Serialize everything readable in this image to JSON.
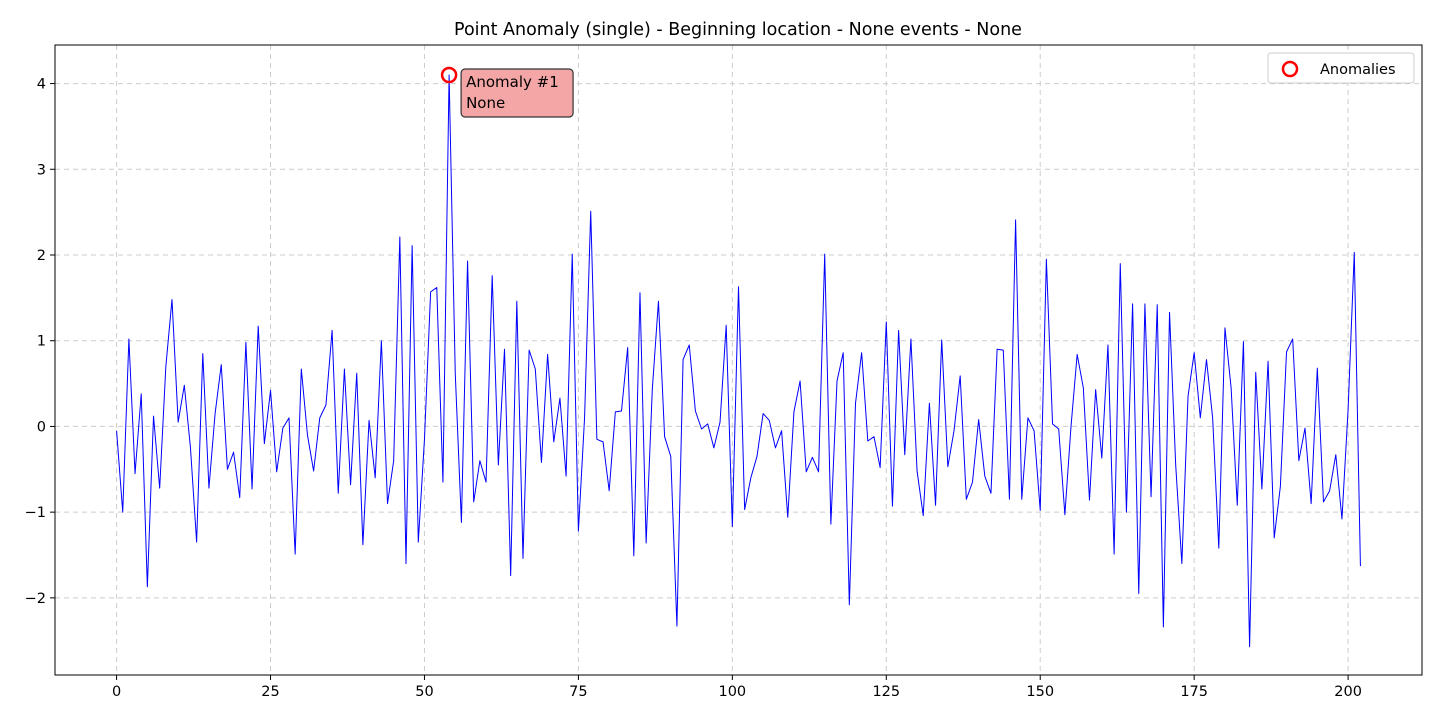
{
  "chart_data": {
    "type": "line",
    "title": "Point Anomaly (single) - Beginning location - None events - None",
    "xlabel": "",
    "ylabel": "",
    "xlim": [
      -10,
      212
    ],
    "ylim": [
      -2.9,
      4.45
    ],
    "xticks": [
      0,
      25,
      50,
      75,
      100,
      125,
      150,
      175,
      200
    ],
    "yticks": [
      -2,
      -1,
      0,
      1,
      2,
      3,
      4
    ],
    "grid": true,
    "legend_position": "top-right",
    "line_color": "#0000ff",
    "series": [
      {
        "values": [
          -0.05,
          -1.0,
          1.02,
          -0.55,
          0.38,
          -1.87,
          0.12,
          -0.72,
          0.7,
          1.48,
          0.05,
          0.48,
          -0.25,
          -1.35,
          0.85,
          -0.72,
          0.15,
          0.72,
          -0.5,
          -0.3,
          -0.83,
          0.98,
          -0.73,
          1.17,
          -0.2,
          0.42,
          -0.53,
          -0.02,
          0.1,
          -1.49,
          0.67,
          -0.1,
          -0.52,
          0.1,
          0.25,
          1.12,
          -0.78,
          0.67,
          -0.68,
          0.62,
          -1.38,
          0.07,
          -0.6,
          1.0,
          -0.9,
          -0.4,
          2.21,
          -1.6,
          2.11,
          -1.35,
          -0.15,
          1.57,
          1.62,
          -0.65,
          4.1,
          0.62,
          -1.12,
          1.93,
          -0.88,
          -0.4,
          -0.65,
          1.76,
          -0.45,
          0.9,
          -1.74,
          1.46,
          -1.54,
          0.89,
          0.67,
          -0.42,
          0.84,
          -0.18,
          0.33,
          -0.58,
          2.01,
          -1.22,
          0.1,
          2.51,
          -0.15,
          -0.18,
          -0.75,
          0.17,
          0.18,
          0.92,
          -1.51,
          1.56,
          -1.36,
          0.43,
          1.46,
          -0.12,
          -0.35,
          -2.33,
          0.78,
          0.95,
          0.18,
          -0.03,
          0.03,
          -0.25,
          0.05,
          1.18,
          -1.17,
          1.63,
          -0.97,
          -0.6,
          -0.35,
          0.15,
          0.07,
          -0.25,
          -0.05,
          -1.06,
          0.17,
          0.53,
          -0.53,
          -0.36,
          -0.53,
          2.01,
          -1.14,
          0.53,
          0.86,
          -2.08,
          0.27,
          0.86,
          -0.17,
          -0.12,
          -0.48,
          1.22,
          -0.93,
          1.12,
          -0.33,
          1.02,
          -0.52,
          -1.04,
          0.27,
          -0.92,
          1.01,
          -0.47,
          -0.05,
          0.59,
          -0.85,
          -0.65,
          0.08,
          -0.58,
          -0.78,
          0.9,
          0.89,
          -0.85,
          2.41,
          -0.85,
          0.1,
          -0.05,
          -0.98,
          1.95,
          0.03,
          -0.03,
          -1.03,
          0.0,
          0.84,
          0.45,
          -0.86,
          0.43,
          -0.37,
          0.95,
          -1.49,
          1.9,
          -1.0,
          1.43,
          -1.95,
          1.43,
          -0.82,
          1.42,
          -2.34,
          1.33,
          -0.45,
          -1.6,
          0.35,
          0.86,
          0.1,
          0.78,
          0.1,
          -1.42,
          1.15,
          0.45,
          -0.92,
          0.99,
          -2.57,
          0.63,
          -0.73,
          0.76,
          -1.3,
          -0.7,
          0.87,
          1.02,
          -0.4,
          -0.02,
          -0.9,
          0.68,
          -0.88,
          -0.75,
          -0.33,
          -1.08,
          0.2,
          2.03,
          -1.63
        ]
      }
    ],
    "anomalies": {
      "legend_label": "Anomalies",
      "marker_color": "#ff0000",
      "points": [
        {
          "x": 54,
          "y": 4.1
        }
      ]
    },
    "annotations": [
      {
        "x": 54,
        "y": 4.1,
        "line1": "Anomaly #1",
        "line2": "None",
        "box_color": "#f4a6a6"
      }
    ]
  }
}
